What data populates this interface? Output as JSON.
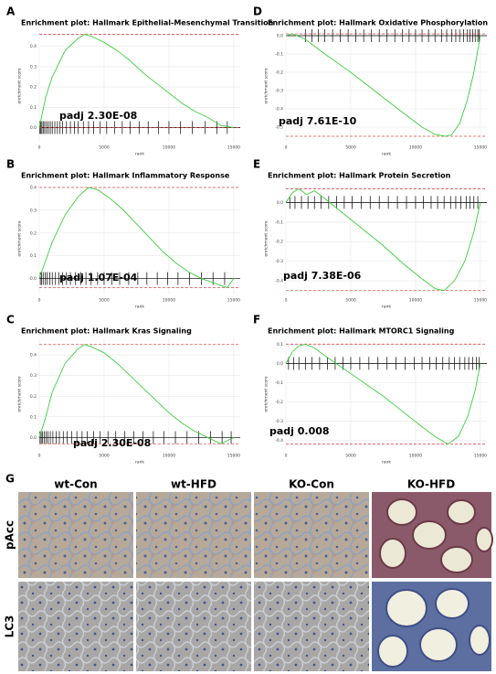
{
  "chart_data": [
    {
      "type": "line",
      "panel": "A",
      "title": "Enrichment plot: Hallmark Epithelial-Mesenchymal Transition",
      "annotation": "padj 2.30E-08",
      "x_label": "rank",
      "y_label": "enrichment score",
      "x": [
        0,
        500,
        1000,
        2000,
        3000,
        3500,
        4000,
        5000,
        6000,
        7000,
        8000,
        9000,
        10000,
        11000,
        12000,
        13000,
        14000,
        15000
      ],
      "series": [
        {
          "color": "#3ccf3c",
          "values": [
            0,
            0.15,
            0.25,
            0.38,
            0.44,
            0.46,
            0.45,
            0.42,
            0.38,
            0.33,
            0.27,
            0.22,
            0.17,
            0.12,
            0.08,
            0.05,
            0.01,
            0
          ]
        }
      ],
      "hits": [
        50,
        120,
        200,
        300,
        420,
        560,
        700,
        850,
        1000,
        1200,
        1400,
        1600,
        1800,
        2100,
        2400,
        2700,
        3000,
        3400,
        3800,
        4200,
        4700,
        5200,
        5800,
        6400,
        7000,
        7700,
        8400,
        9200,
        10000,
        10900,
        11800,
        12800,
        13700,
        14500
      ],
      "xlim": [
        0,
        15500
      ],
      "xticks": [
        0,
        5000,
        10000,
        15000
      ],
      "ylim": [
        -0.07,
        0.48
      ],
      "yticks": [
        {
          "value": 0,
          "label": "0.0"
        },
        0.1,
        0.2,
        0.3,
        0.4
      ],
      "grid": true
    },
    {
      "type": "line",
      "panel": "D",
      "title": "Enrichment plot: Hallmark Oxidative Phosphorylation",
      "annotation": "padj 7.61E-10",
      "x_label": "rank",
      "y_label": "enrichment score",
      "x": [
        0,
        500,
        1500,
        3000,
        5000,
        7000,
        9000,
        10500,
        11500,
        12300,
        12800,
        13400,
        14000,
        14500,
        15000
      ],
      "series": [
        {
          "color": "#3ccf3c",
          "values": [
            0,
            0.01,
            -0.02,
            -0.1,
            -0.2,
            -0.31,
            -0.42,
            -0.5,
            -0.54,
            -0.55,
            -0.54,
            -0.48,
            -0.35,
            -0.2,
            0
          ]
        }
      ],
      "hits": [
        1500,
        2000,
        2500,
        3000,
        3600,
        4200,
        4800,
        5400,
        6000,
        6600,
        7200,
        7800,
        8400,
        9000,
        9500,
        10000,
        10500,
        11000,
        11500,
        12000,
        12400,
        12800,
        13100,
        13400,
        13700,
        14000,
        14200,
        14400,
        14600,
        14800,
        14900
      ],
      "xlim": [
        0,
        15500
      ],
      "xticks": [
        0,
        5000,
        10000,
        15000
      ],
      "ylim": [
        -0.58,
        0.03
      ],
      "yticks": [
        {
          "value": 0,
          "label": "0.0"
        },
        -0.1,
        -0.2,
        -0.3,
        -0.4,
        -0.5
      ],
      "grid": true
    },
    {
      "type": "line",
      "panel": "B",
      "title": "Enrichment plot: Hallmark Inflammatory Response",
      "annotation": "padj 1.07E-04",
      "x_label": "rank",
      "y_label": "enrichment score",
      "x": [
        0,
        500,
        1000,
        2000,
        3000,
        3800,
        4500,
        5500,
        6500,
        7500,
        8500,
        9500,
        10500,
        11500,
        12500,
        13500,
        14500,
        15000
      ],
      "series": [
        {
          "color": "#3ccf3c",
          "values": [
            0,
            0.08,
            0.16,
            0.28,
            0.36,
            0.4,
            0.39,
            0.35,
            0.3,
            0.24,
            0.18,
            0.12,
            0.07,
            0.03,
            0,
            -0.02,
            -0.04,
            0
          ]
        }
      ],
      "hits": [
        80,
        180,
        300,
        450,
        600,
        800,
        1000,
        1250,
        1500,
        1800,
        2100,
        2400,
        2800,
        3200,
        3600,
        4000,
        4500,
        5000,
        5600,
        6200,
        6900,
        7600,
        8300,
        9100,
        9900,
        10700,
        11600,
        12500,
        13400,
        14300
      ],
      "xlim": [
        0,
        15500
      ],
      "xticks": [
        0,
        5000,
        10000,
        15000
      ],
      "ylim": [
        -0.07,
        0.42
      ],
      "yticks": [
        {
          "value": 0,
          "label": "0.0"
        },
        0.1,
        0.2,
        0.3,
        0.4
      ],
      "grid": true
    },
    {
      "type": "line",
      "panel": "E",
      "title": "Enrichment plot: Hallmark Protein Secretion",
      "annotation": "padj 7.38E-06",
      "x_label": "rank",
      "y_label": "enrichment score",
      "x": [
        0,
        500,
        1000,
        1600,
        2200,
        3000,
        4500,
        6000,
        7500,
        9000,
        10500,
        11500,
        12200,
        13000,
        13800,
        14500,
        15000
      ],
      "series": [
        {
          "color": "#3ccf3c",
          "values": [
            0,
            0.05,
            0.07,
            0.04,
            0.06,
            0.02,
            -0.06,
            -0.14,
            -0.22,
            -0.31,
            -0.39,
            -0.44,
            -0.45,
            -0.4,
            -0.3,
            -0.15,
            0
          ]
        }
      ],
      "hits": [
        300,
        700,
        1200,
        1700,
        2200,
        2700,
        3300,
        3900,
        4500,
        5100,
        5800,
        6500,
        7200,
        7900,
        8600,
        9300,
        10000,
        10600,
        11200,
        11700,
        12200,
        12700,
        13100,
        13500,
        13900,
        14200,
        14500,
        14800
      ],
      "xlim": [
        0,
        15500
      ],
      "xticks": [
        0,
        5000,
        10000,
        15000
      ],
      "ylim": [
        -0.47,
        0.1
      ],
      "yticks": [
        {
          "value": 0,
          "label": "0.0"
        },
        -0.1,
        -0.2,
        -0.3,
        -0.4
      ],
      "grid": true
    },
    {
      "type": "line",
      "panel": "C",
      "title": "Enrichment plot: Hallmark Kras Signaling",
      "annotation": "padj 2.30E-08",
      "x_label": "rank",
      "y_label": "enrichment score",
      "x": [
        0,
        500,
        1000,
        2000,
        3000,
        3500,
        4000,
        5000,
        6000,
        7000,
        8000,
        9000,
        10000,
        11000,
        12000,
        13000,
        14000,
        15000
      ],
      "series": [
        {
          "color": "#3ccf3c",
          "values": [
            0,
            0.1,
            0.22,
            0.36,
            0.43,
            0.45,
            0.44,
            0.41,
            0.36,
            0.3,
            0.24,
            0.18,
            0.12,
            0.07,
            0.03,
            0,
            -0.03,
            0
          ]
        }
      ],
      "hits": [
        60,
        150,
        260,
        380,
        520,
        680,
        850,
        1050,
        1300,
        1550,
        1850,
        2150,
        2500,
        2900,
        3300,
        3700,
        4200,
        4700,
        5300,
        5900,
        6600,
        7300,
        8000,
        8800,
        9600,
        10500,
        11400,
        12300,
        13200,
        14100,
        14800
      ],
      "xlim": [
        0,
        15500
      ],
      "xticks": [
        0,
        5000,
        10000,
        15000
      ],
      "ylim": [
        -0.06,
        0.48
      ],
      "yticks": [
        {
          "value": 0,
          "label": "0.0"
        },
        0.1,
        0.2,
        0.3,
        0.4
      ],
      "grid": true
    },
    {
      "type": "line",
      "panel": "F",
      "title": "Enrichment plot: Hallmark MTORC1 Signaling",
      "annotation": "padj 0.008",
      "x_label": "rank",
      "y_label": "enrichment score",
      "x": [
        0,
        500,
        1000,
        1500,
        2200,
        3000,
        4500,
        6000,
        7500,
        9000,
        10500,
        11500,
        12500,
        13300,
        14000,
        14600,
        15000
      ],
      "series": [
        {
          "color": "#3ccf3c",
          "values": [
            0,
            0.06,
            0.09,
            0.1,
            0.08,
            0.04,
            -0.03,
            -0.1,
            -0.17,
            -0.25,
            -0.33,
            -0.38,
            -0.42,
            -0.38,
            -0.28,
            -0.14,
            0
          ]
        }
      ],
      "hits": [
        200,
        600,
        1000,
        1500,
        2000,
        2600,
        3200,
        3800,
        4400,
        5000,
        5700,
        6400,
        7100,
        7800,
        8500,
        9200,
        9900,
        10500,
        11100,
        11600,
        12100,
        12600,
        13000,
        13400,
        13800,
        14100,
        14400,
        14700,
        14900
      ],
      "xlim": [
        0,
        15500
      ],
      "xticks": [
        0,
        5000,
        10000,
        15000
      ],
      "ylim": [
        -0.45,
        0.13
      ],
      "yticks": [
        0.1,
        {
          "value": 0,
          "label": "0.0"
        },
        -0.1,
        -0.2,
        -0.3,
        -0.4
      ],
      "grid": true
    }
  ],
  "histology": {
    "panel": "G",
    "columns": [
      "wt-Con",
      "wt-HFD",
      "KO-Con",
      "KO-HFD"
    ],
    "rows": [
      "pAcc",
      "LC3"
    ]
  }
}
